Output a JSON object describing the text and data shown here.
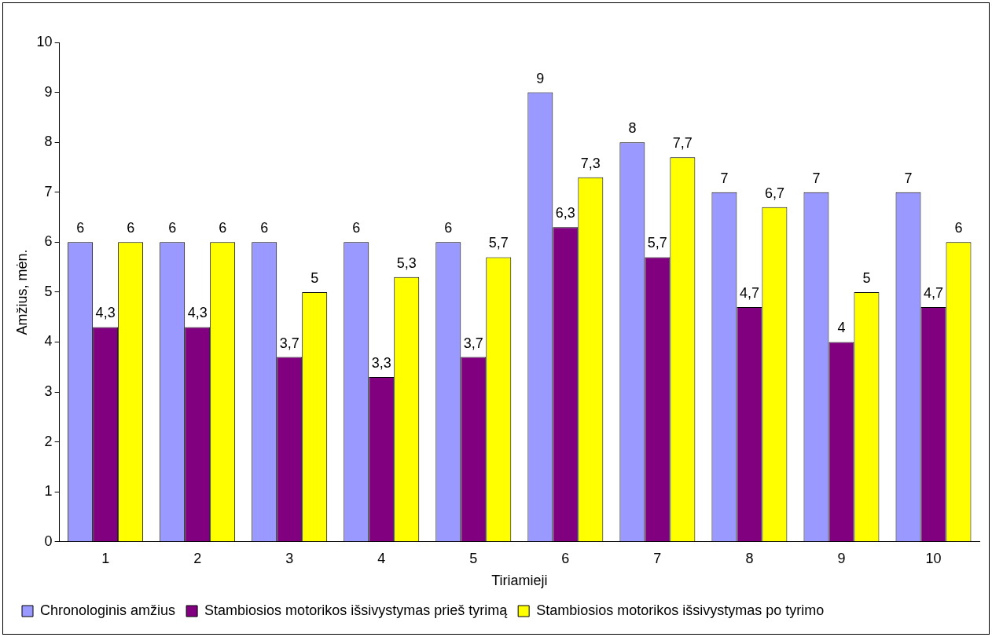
{
  "chart_data": {
    "type": "bar",
    "xlabel": "Tiriamieji",
    "ylabel": "Amžius, mėn.",
    "categories": [
      "1",
      "2",
      "3",
      "4",
      "5",
      "6",
      "7",
      "8",
      "9",
      "10"
    ],
    "series": [
      {
        "name": "Chronologinis amžius",
        "color": "#9999ff",
        "values": [
          6,
          6,
          6,
          6,
          6,
          9,
          8,
          7,
          7,
          7
        ],
        "value_labels": [
          "6",
          "6",
          "6",
          "6",
          "6",
          "9",
          "8",
          "7",
          "7",
          "7"
        ]
      },
      {
        "name": "Stambiosios motorikos išsivystymas prieš tyrimą",
        "color": "#800080",
        "values": [
          4.3,
          4.3,
          3.7,
          3.3,
          3.7,
          6.3,
          5.7,
          4.7,
          4,
          4.7
        ],
        "value_labels": [
          "4,3",
          "4,3",
          "3,7",
          "3,3",
          "3,7",
          "6,3",
          "5,7",
          "4,7",
          "4",
          "4,7"
        ]
      },
      {
        "name": "Stambiosios motorikos išsivystymas po tyrimo",
        "color": "#ffff00",
        "values": [
          6,
          6,
          5,
          5.3,
          5.7,
          7.3,
          7.7,
          6.7,
          5,
          6
        ],
        "value_labels": [
          "6",
          "6",
          "5",
          "5,3",
          "5,7",
          "7,3",
          "7,7",
          "6,7",
          "5",
          "6"
        ]
      }
    ],
    "ylim": [
      0,
      10
    ],
    "yticks": [
      0,
      1,
      2,
      3,
      4,
      5,
      6,
      7,
      8,
      9,
      10
    ],
    "grid": false,
    "legend": "bottom"
  }
}
